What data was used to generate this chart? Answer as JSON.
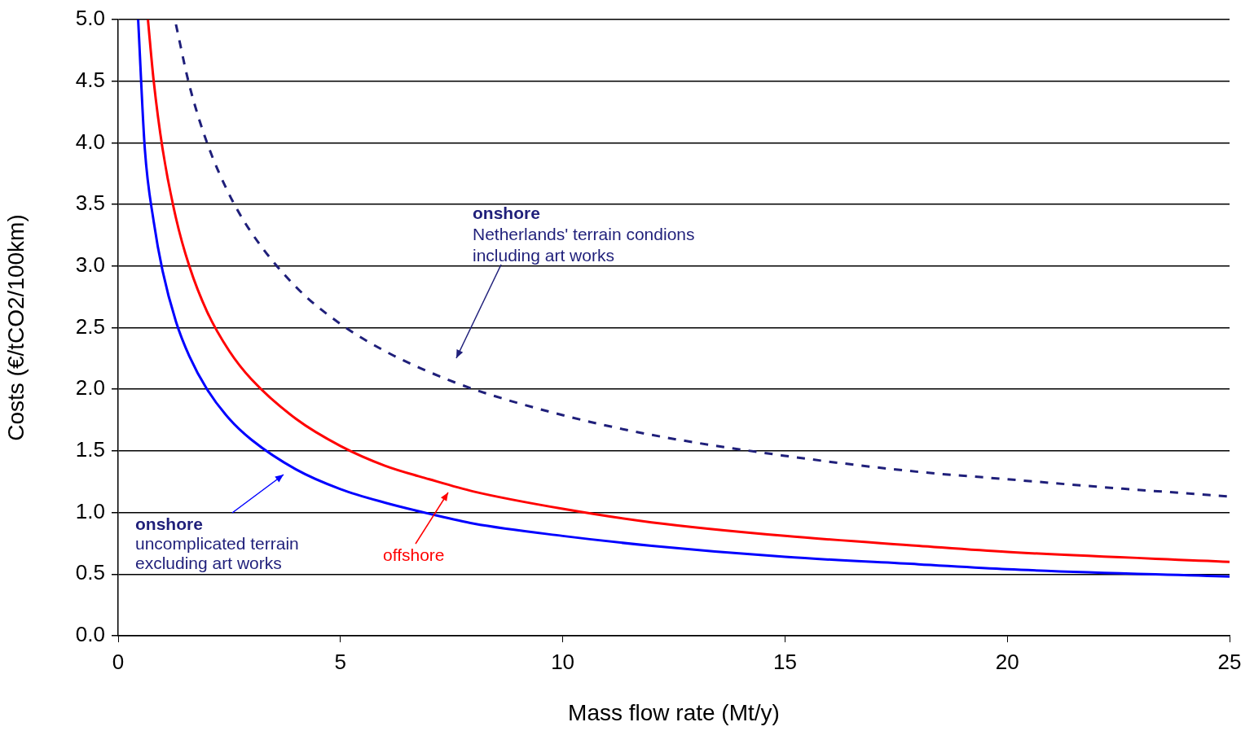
{
  "chart_data": {
    "type": "line",
    "xlabel": "Mass flow rate (Mt/y)",
    "ylabel": "Costs (€/tCO2/100km)",
    "xlim": [
      0,
      25
    ],
    "xticks": [
      0,
      5,
      10,
      15,
      20,
      25
    ],
    "ylim": [
      0,
      5
    ],
    "yticks": [
      {
        "value": 0,
        "label": "0.0"
      },
      {
        "value": 0.5,
        "label": "0.5"
      },
      {
        "value": 1,
        "label": "1.0"
      },
      {
        "value": 1.5,
        "label": "1.5"
      },
      {
        "value": 2,
        "label": "2.0"
      },
      {
        "value": 2.5,
        "label": "2.5"
      },
      {
        "value": 3,
        "label": "3.0"
      },
      {
        "value": 3.5,
        "label": "3.5"
      },
      {
        "value": 4,
        "label": "4.0"
      },
      {
        "value": 4.5,
        "label": "4.5"
      },
      {
        "value": 5,
        "label": "5.0"
      }
    ],
    "grid": "y",
    "legend": false,
    "marker": "none",
    "annotations": [
      "onshore\nuncomplicated terrain\nexcluding art works",
      "offshore",
      "onshore\nNetherlands' terrain condions\nincluding art works"
    ],
    "series": [
      {
        "color": "#0000ff",
        "line_style": "solid",
        "x": [
          0.45,
          0.6,
          0.8,
          1,
          1.3,
          1.6,
          2,
          2.5,
          3,
          4,
          5,
          6,
          7,
          8,
          10,
          12,
          15,
          18,
          20,
          25
        ],
        "values": [
          5.0,
          3.95,
          3.36,
          2.96,
          2.55,
          2.27,
          2.0,
          1.76,
          1.59,
          1.35,
          1.19,
          1.08,
          0.99,
          0.91,
          0.81,
          0.73,
          0.64,
          0.58,
          0.54,
          0.48
        ]
      },
      {
        "color": "#ff0000",
        "line_style": "solid",
        "x": [
          0.67,
          0.8,
          1,
          1.3,
          1.6,
          2,
          2.5,
          3,
          4,
          5,
          6,
          7,
          8,
          10,
          12,
          15,
          18,
          20,
          25
        ],
        "values": [
          5.0,
          4.5,
          3.95,
          3.39,
          3.0,
          2.63,
          2.31,
          2.08,
          1.76,
          1.54,
          1.38,
          1.27,
          1.17,
          1.03,
          0.92,
          0.81,
          0.73,
          0.68,
          0.6
        ]
      },
      {
        "color": "#1f1f7a",
        "line_style": "dashed",
        "x": [
          1.3,
          1.6,
          2,
          2.5,
          3,
          4,
          5,
          6,
          7,
          8,
          10,
          12,
          15,
          18,
          20,
          22,
          25
        ],
        "values": [
          4.96,
          4.47,
          4.0,
          3.58,
          3.27,
          2.83,
          2.53,
          2.31,
          2.14,
          2.0,
          1.79,
          1.63,
          1.46,
          1.33,
          1.27,
          1.21,
          1.13
        ]
      }
    ]
  }
}
